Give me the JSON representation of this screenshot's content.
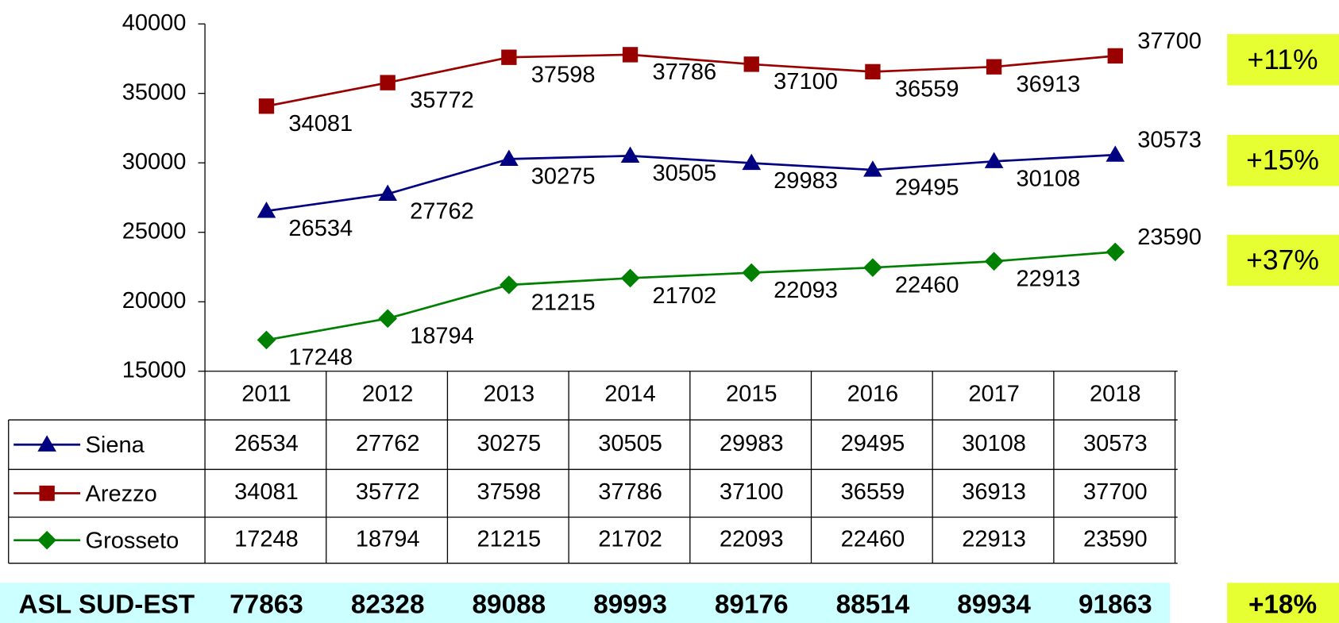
{
  "chart_data": {
    "type": "line",
    "categories": [
      "2011",
      "2012",
      "2013",
      "2014",
      "2015",
      "2016",
      "2017",
      "2018"
    ],
    "ylim": [
      15000,
      40000
    ],
    "yticks": [
      15000,
      20000,
      25000,
      30000,
      35000,
      40000
    ],
    "grid": false,
    "series": [
      {
        "name": "Siena",
        "color": "#000080",
        "marker": "triangle",
        "values": [
          26534,
          27762,
          30275,
          30505,
          29983,
          29495,
          30108,
          30573
        ],
        "growth": "+15%"
      },
      {
        "name": "Arezzo",
        "color": "#990000",
        "marker": "square",
        "values": [
          34081,
          35772,
          37598,
          37786,
          37100,
          36559,
          36913,
          37700
        ],
        "growth": "+11%"
      },
      {
        "name": "Grosseto",
        "color": "#008000",
        "marker": "diamond",
        "values": [
          17248,
          18794,
          21215,
          21702,
          22093,
          22460,
          22913,
          23590
        ],
        "growth": "+37%"
      }
    ],
    "total": {
      "name": "ASL SUD-EST",
      "values": [
        77863,
        82328,
        89088,
        89993,
        89176,
        88514,
        89934,
        91863
      ],
      "growth": "+18%"
    }
  }
}
